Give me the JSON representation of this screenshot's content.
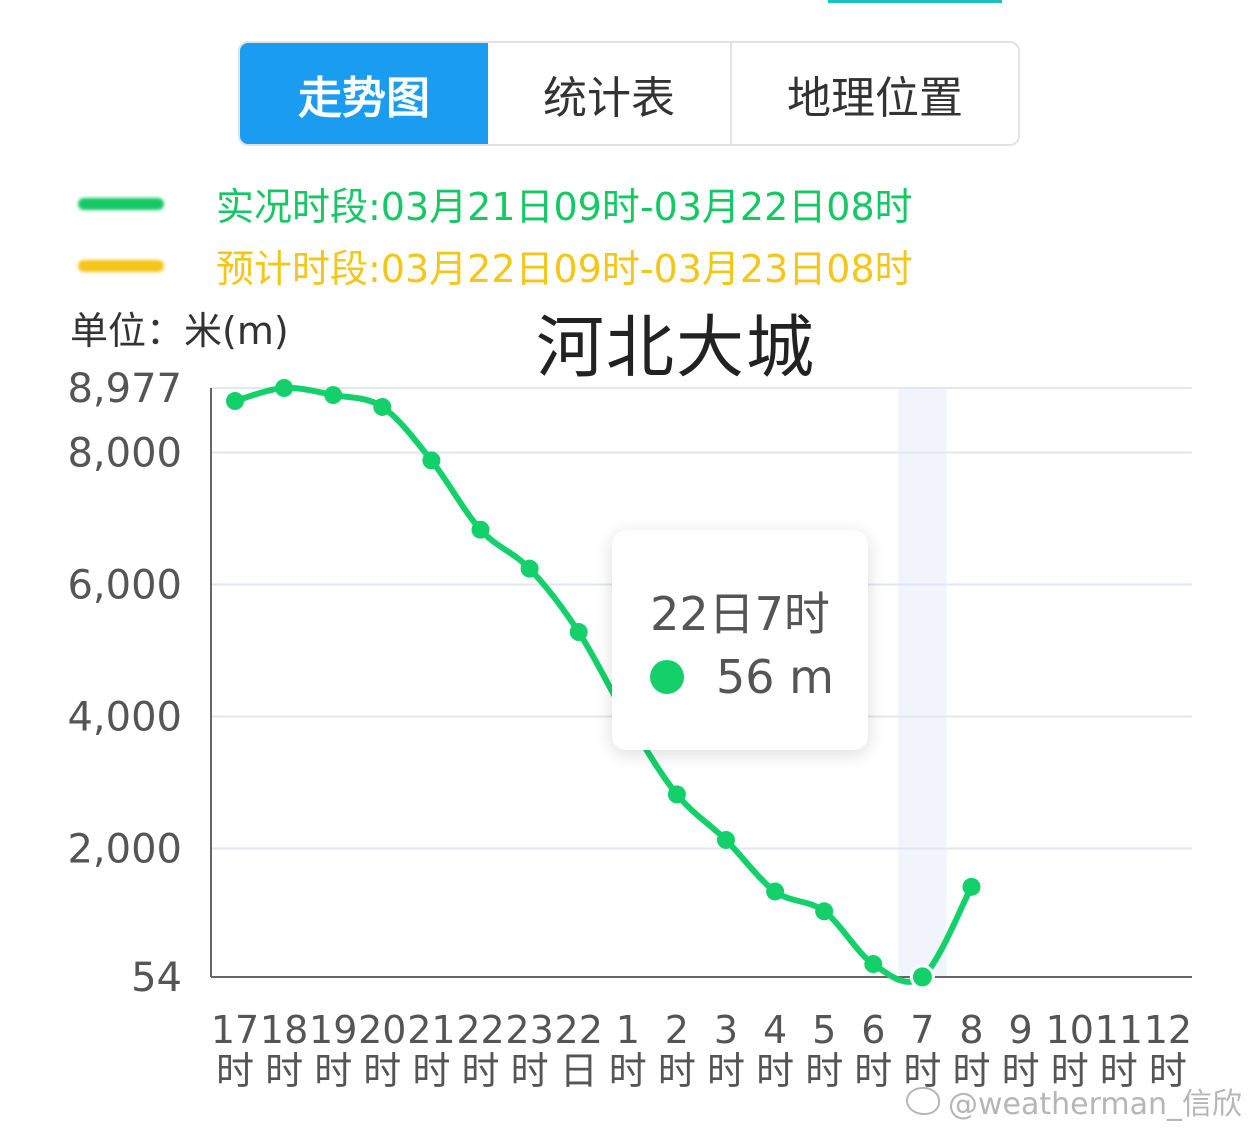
{
  "tabs": [
    {
      "label": "走势图",
      "active": true
    },
    {
      "label": "统计表",
      "active": false
    },
    {
      "label": "地理位置",
      "active": false
    }
  ],
  "legend": {
    "actual": {
      "text": "实况时段:03月21日09时-03月22日08时",
      "color": "#14c864"
    },
    "forecast": {
      "text": "预计时段:03月22日09时-03月23日08时",
      "color": "#f5c518"
    }
  },
  "unit_label": "单位：米(m)",
  "location": "河北大城",
  "tooltip": {
    "time": "22日7时",
    "value": "56 m"
  },
  "watermark": "@weatherman_信欣",
  "chart_data": {
    "type": "line",
    "title": "河北大城",
    "ylabel": "单位：米(m)",
    "ylim": [
      54,
      8977
    ],
    "yticks": [
      "8,977",
      "8,000",
      "6,000",
      "4,000",
      "2,000",
      "54"
    ],
    "ytick_values": [
      8977,
      8000,
      6000,
      4000,
      2000,
      54
    ],
    "x_ticks": [
      [
        "17",
        "时"
      ],
      [
        "18",
        "时"
      ],
      [
        "19",
        "时"
      ],
      [
        "20",
        "时"
      ],
      [
        "21",
        "时"
      ],
      [
        "22",
        "时"
      ],
      [
        "23",
        "时"
      ],
      [
        "22",
        "日"
      ],
      [
        "1",
        "时"
      ],
      [
        "2",
        "时"
      ],
      [
        "3",
        "时"
      ],
      [
        "4",
        "时"
      ],
      [
        "5",
        "时"
      ],
      [
        "6",
        "时"
      ],
      [
        "7",
        "时"
      ],
      [
        "8",
        "时"
      ],
      [
        "9",
        "时"
      ],
      [
        "10",
        "时"
      ],
      [
        "11",
        "时"
      ],
      [
        "12",
        "时"
      ]
    ],
    "series": [
      {
        "color": "#14d06a",
        "values": [
          8780,
          8977,
          8870,
          8690,
          7880,
          6830,
          6240,
          5280,
          3960,
          2820,
          2130,
          1350,
          1050,
          250,
          56,
          1420
        ]
      }
    ],
    "highlight_index": 14,
    "grid": true
  }
}
